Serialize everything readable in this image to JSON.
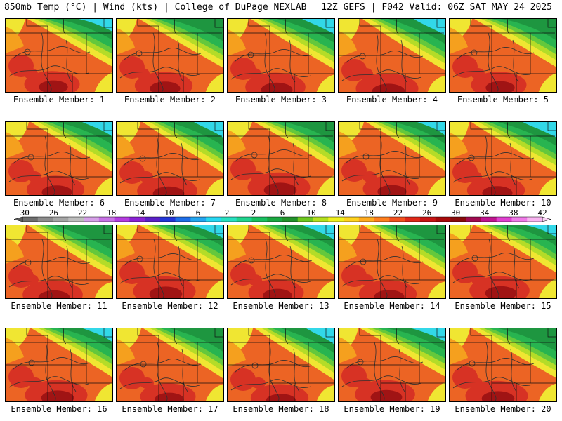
{
  "header": {
    "left": "850mb Temp (°C) | Wind (kts) | College of DuPage NEXLAB",
    "right": "12Z GEFS | F042 Valid: 06Z SAT MAY 24 2025"
  },
  "members": [
    {
      "label": "Ensemble Member: 1"
    },
    {
      "label": "Ensemble Member: 2"
    },
    {
      "label": "Ensemble Member: 3"
    },
    {
      "label": "Ensemble Member: 4"
    },
    {
      "label": "Ensemble Member: 5"
    },
    {
      "label": "Ensemble Member: 6"
    },
    {
      "label": "Ensemble Member: 7"
    },
    {
      "label": "Ensemble Member: 8"
    },
    {
      "label": "Ensemble Member: 9"
    },
    {
      "label": "Ensemble Member: 10"
    },
    {
      "label": "Ensemble Member: 11"
    },
    {
      "label": "Ensemble Member: 12"
    },
    {
      "label": "Ensemble Member: 13"
    },
    {
      "label": "Ensemble Member: 14"
    },
    {
      "label": "Ensemble Member: 15"
    },
    {
      "label": "Ensemble Member: 16"
    },
    {
      "label": "Ensemble Member: 17"
    },
    {
      "label": "Ensemble Member: 18"
    },
    {
      "label": "Ensemble Member: 19"
    },
    {
      "label": "Ensemble Member: 20"
    }
  ],
  "colorbar": {
    "ticks": [
      "−30",
      "−26",
      "−22",
      "−18",
      "−14",
      "−10",
      "−6",
      "−2",
      "2",
      "6",
      "10",
      "14",
      "18",
      "22",
      "26",
      "30",
      "34",
      "38",
      "42"
    ],
    "colors": [
      "#6e6e6e",
      "#8c8c8c",
      "#a5a5a5",
      "#bdbdbd",
      "#d6a0e8",
      "#c872e6",
      "#b43ce0",
      "#8a22d4",
      "#5a20c8",
      "#2236d8",
      "#1e6ee8",
      "#23a6f0",
      "#27d7f2",
      "#28e0c0",
      "#1fd48e",
      "#18c060",
      "#1aa840",
      "#22922a",
      "#6ec81e",
      "#b4e01e",
      "#f0f01e",
      "#ffd21e",
      "#ffaa1e",
      "#ff7e1e",
      "#f2501e",
      "#e02818",
      "#c81414",
      "#a80a0a",
      "#880a0a",
      "#a00a50",
      "#c01490",
      "#e040d0",
      "#f07ae8",
      "#f8b4f0"
    ]
  },
  "legend_palette": {
    "sea_cold": "#32d8e8",
    "green_dark": "#1e9640",
    "green": "#28b450",
    "green_light": "#64c83c",
    "yellow_green": "#b4dc28",
    "yellow": "#f0e632",
    "orange": "#f5a01e",
    "red_orange": "#ec6424",
    "red": "#d73224",
    "dark_red": "#a01414"
  }
}
